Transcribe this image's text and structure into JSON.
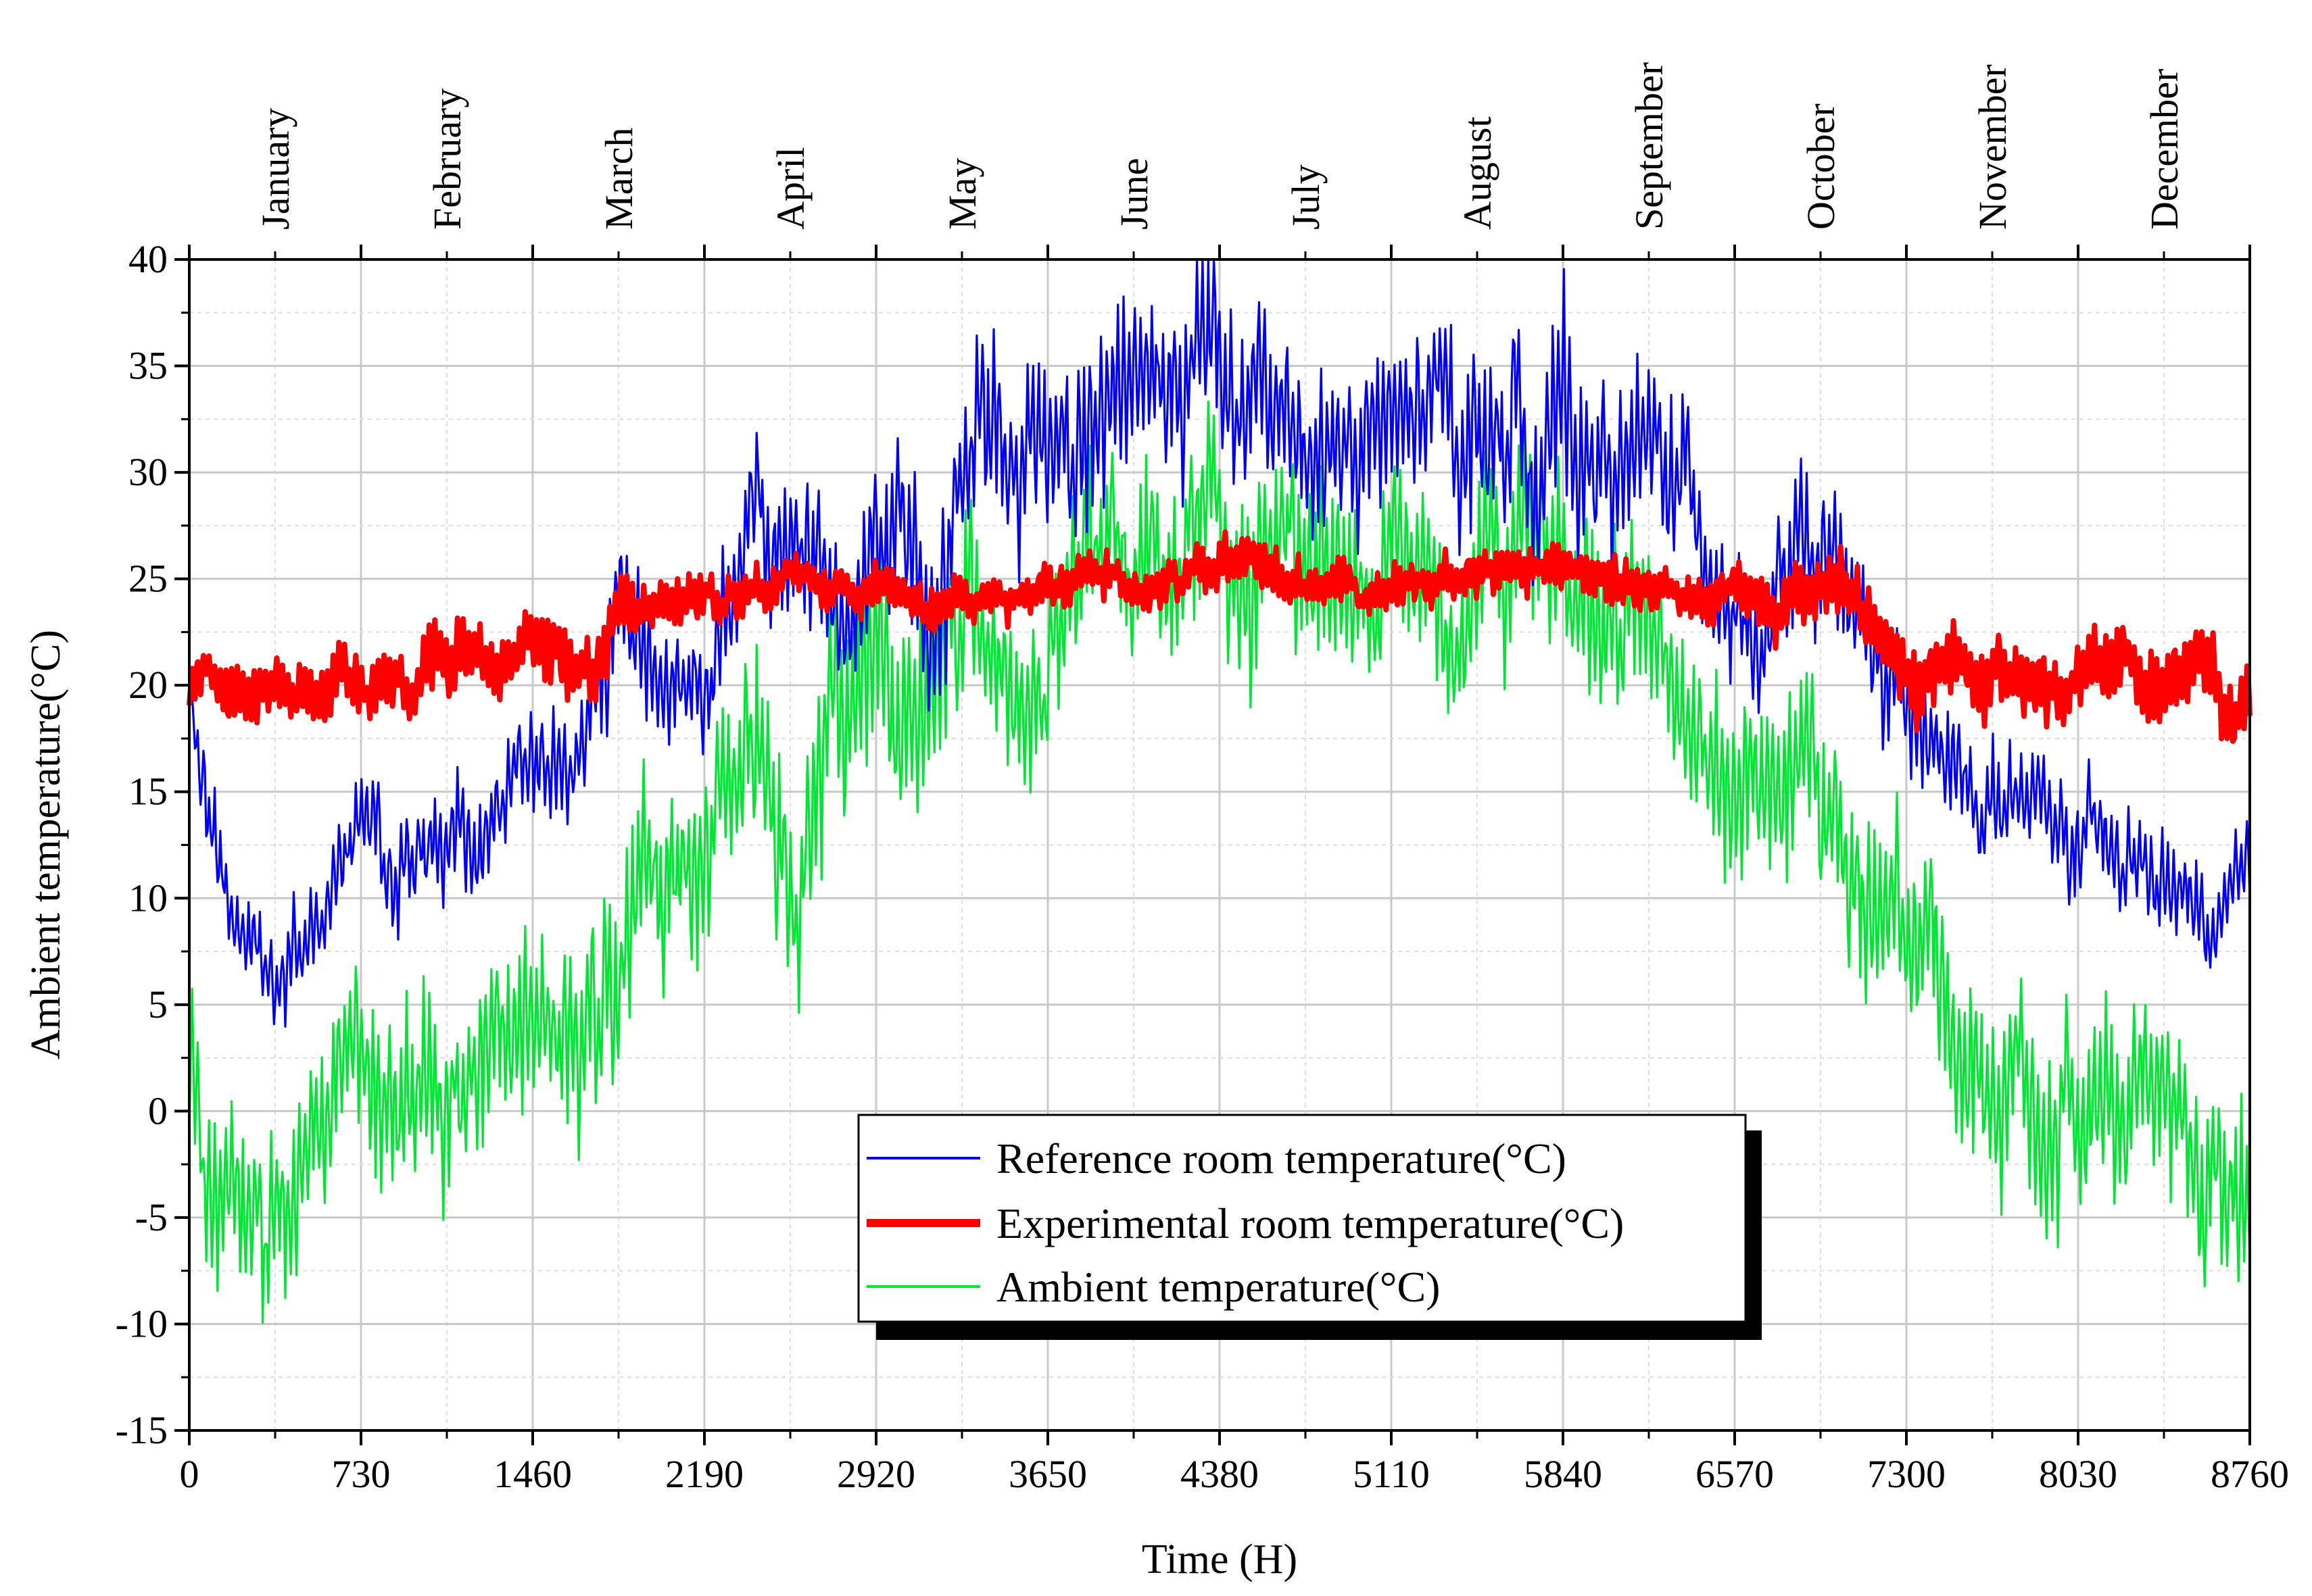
{
  "chart_data": {
    "type": "line",
    "title": "",
    "xlabel": "Time (H)",
    "ylabel": "Ambient temperature(°C)",
    "xlim": [
      0,
      8760
    ],
    "ylim": [
      -15,
      40
    ],
    "grid": true,
    "x_ticks": [
      0,
      730,
      1460,
      2190,
      2920,
      3650,
      4380,
      5110,
      5840,
      6570,
      7300,
      8030,
      8760
    ],
    "y_ticks": [
      -15,
      -10,
      -5,
      0,
      5,
      10,
      15,
      20,
      25,
      30,
      35,
      40
    ],
    "top_axis_months": [
      {
        "label": "January",
        "x": 365
      },
      {
        "label": "February",
        "x": 1095
      },
      {
        "label": "March",
        "x": 1825
      },
      {
        "label": "April",
        "x": 2555
      },
      {
        "label": "May",
        "x": 3285
      },
      {
        "label": "June",
        "x": 4015
      },
      {
        "label": "July",
        "x": 4745
      },
      {
        "label": "August",
        "x": 5475
      },
      {
        "label": "September",
        "x": 6205
      },
      {
        "label": "October",
        "x": 6935
      },
      {
        "label": "November",
        "x": 7665
      },
      {
        "label": "December",
        "x": 8395
      }
    ],
    "legend_position": "bottom-center",
    "series": [
      {
        "name": "Reference room temperature(°C)",
        "color": "#0000ff",
        "x": [
          0,
          60,
          180,
          360,
          450,
          730,
          1000,
          1200,
          1460,
          1700,
          1780,
          1820,
          2000,
          2190,
          2300,
          2400,
          2600,
          2800,
          2920,
          3100,
          3300,
          3500,
          3650,
          3800,
          4000,
          4200,
          4380,
          4500,
          4745,
          5000,
          5110,
          5300,
          5500,
          5700,
          5840,
          6000,
          6200,
          6300,
          6570,
          6700,
          6800,
          6935,
          7100,
          7300,
          7500,
          7665,
          7800,
          8030,
          8200,
          8400,
          8600,
          8760
        ],
        "values": [
          20,
          14,
          9,
          7,
          9,
          12,
          12,
          12,
          16,
          17,
          17,
          21,
          20,
          20,
          24,
          26,
          25,
          25,
          27,
          27,
          30,
          31,
          33,
          32,
          33,
          33,
          33,
          32,
          32,
          31,
          31,
          32,
          32,
          33,
          32,
          31,
          30,
          30,
          25,
          22,
          25,
          24,
          22,
          18,
          15,
          15,
          14,
          12,
          11,
          11,
          8,
          9
        ],
        "amplitude": [
          0,
          3,
          2.5,
          2.5,
          2.5,
          3,
          3,
          3,
          3,
          3,
          3,
          4,
          3,
          3,
          4,
          4,
          4,
          4,
          4,
          5,
          5,
          5,
          5,
          5,
          5,
          5,
          5,
          4.5,
          4.5,
          4.5,
          4.5,
          4.5,
          5,
          5,
          5,
          5,
          4,
          4,
          3.5,
          3.5,
          4,
          4,
          3.5,
          3.5,
          3,
          3,
          3,
          3,
          2.5,
          2.5,
          2.5,
          2.5
        ]
      },
      {
        "name": "Experimental room temperature(°C)",
        "color": "#ff0000",
        "x": [
          0,
          200,
          400,
          730,
          1000,
          1460,
          1750,
          1800,
          2000,
          2190,
          2400,
          2920,
          3300,
          3650,
          4000,
          4380,
          4745,
          5110,
          5475,
          5840,
          6200,
          6570,
          6800,
          7000,
          7150,
          7300,
          7500,
          7800,
          8030,
          8400,
          8760
        ],
        "values": [
          20,
          19.5,
          19.5,
          20,
          20,
          21,
          21.5,
          23,
          24,
          24.5,
          25,
          24,
          24.5,
          25,
          25,
          25.5,
          25,
          25,
          25,
          25.5,
          25,
          24.5,
          24.5,
          24.5,
          24,
          21,
          21,
          20.5,
          20,
          20,
          20
        ],
        "amplitude": [
          1.5,
          1.8,
          1.8,
          1.8,
          1.8,
          1.8,
          1.8,
          1.8,
          1.5,
          1.3,
          1.2,
          1.2,
          1.2,
          1.2,
          1.2,
          1.3,
          1.2,
          1.2,
          1.2,
          1.2,
          1.3,
          1.5,
          1.8,
          1.8,
          1.8,
          2,
          2,
          2,
          2,
          2,
          2
        ]
      },
      {
        "name": "Ambient temperature(°C)",
        "color": "#00e633",
        "x": [
          0,
          100,
          300,
          500,
          730,
          1000,
          1200,
          1460,
          1700,
          1850,
          2000,
          2190,
          2300,
          2450,
          2600,
          2800,
          2920,
          3100,
          3300,
          3650,
          4000,
          4380,
          4745,
          5110,
          5475,
          5840,
          6100,
          6400,
          6570,
          6800,
          7000,
          7200,
          7300,
          7500,
          7800,
          8030,
          8200,
          8400,
          8600,
          8760
        ],
        "values": [
          2,
          -3,
          -5,
          -2,
          0,
          -1,
          0,
          2,
          4,
          9,
          10,
          11,
          17,
          16,
          12,
          16,
          19,
          19,
          21,
          24,
          26,
          27,
          27,
          26,
          26,
          26,
          21,
          18,
          15,
          16,
          12,
          8,
          6,
          4,
          1,
          0,
          -1,
          -1,
          -4,
          -4
        ],
        "amplitude": [
          4,
          5,
          5,
          5,
          5,
          5,
          5,
          5,
          5,
          5,
          5,
          5,
          5,
          6,
          6,
          6,
          6,
          6,
          5,
          5,
          5,
          5,
          5,
          5,
          5,
          5,
          5,
          5,
          5,
          5,
          5,
          5,
          5,
          5,
          5,
          5,
          5,
          5,
          5,
          5
        ]
      }
    ]
  }
}
